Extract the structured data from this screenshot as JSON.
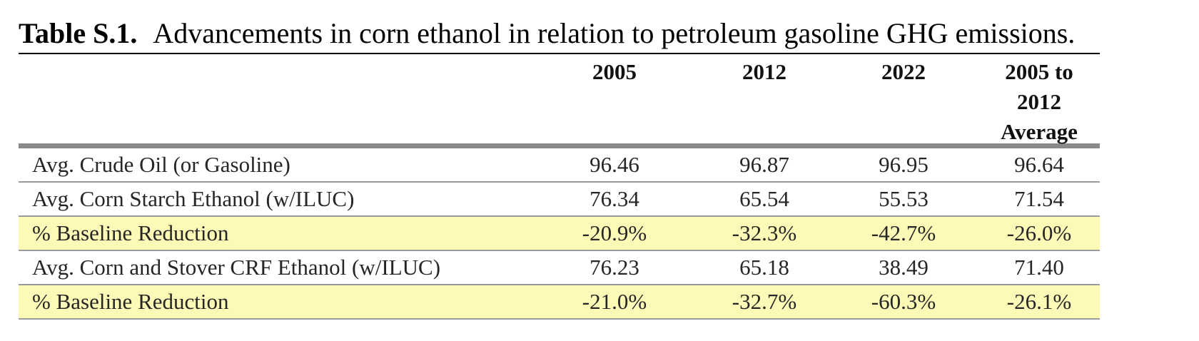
{
  "caption": {
    "label": "Table S.1.",
    "text": "Advancements in corn ethanol in relation to petroleum gasoline GHG emissions."
  },
  "columns": [
    "2005",
    "2012",
    "2022",
    "2005 to 2012 Average"
  ],
  "rows": [
    {
      "label": "Avg. Crude Oil (or Gasoline)",
      "values": [
        "96.46",
        "96.87",
        "96.95",
        "96.64"
      ],
      "highlight": false
    },
    {
      "label": "Avg. Corn Starch Ethanol (w/ILUC)",
      "values": [
        "76.34",
        "65.54",
        "55.53",
        "71.54"
      ],
      "highlight": false
    },
    {
      "label": "% Baseline Reduction",
      "values": [
        "-20.9%",
        "-32.3%",
        "-42.7%",
        "-26.0%"
      ],
      "highlight": true
    },
    {
      "label": "Avg. Corn and Stover CRF Ethanol (w/ILUC)",
      "values": [
        "76.23",
        "65.18",
        "38.49",
        "71.40"
      ],
      "highlight": false
    },
    {
      "label": "% Baseline Reduction",
      "values": [
        "-21.0%",
        "-32.7%",
        "-60.3%",
        "-26.1%"
      ],
      "highlight": true
    }
  ],
  "colors": {
    "highlight_row": "#fdf9b7",
    "rule": "#8a8a8a"
  }
}
